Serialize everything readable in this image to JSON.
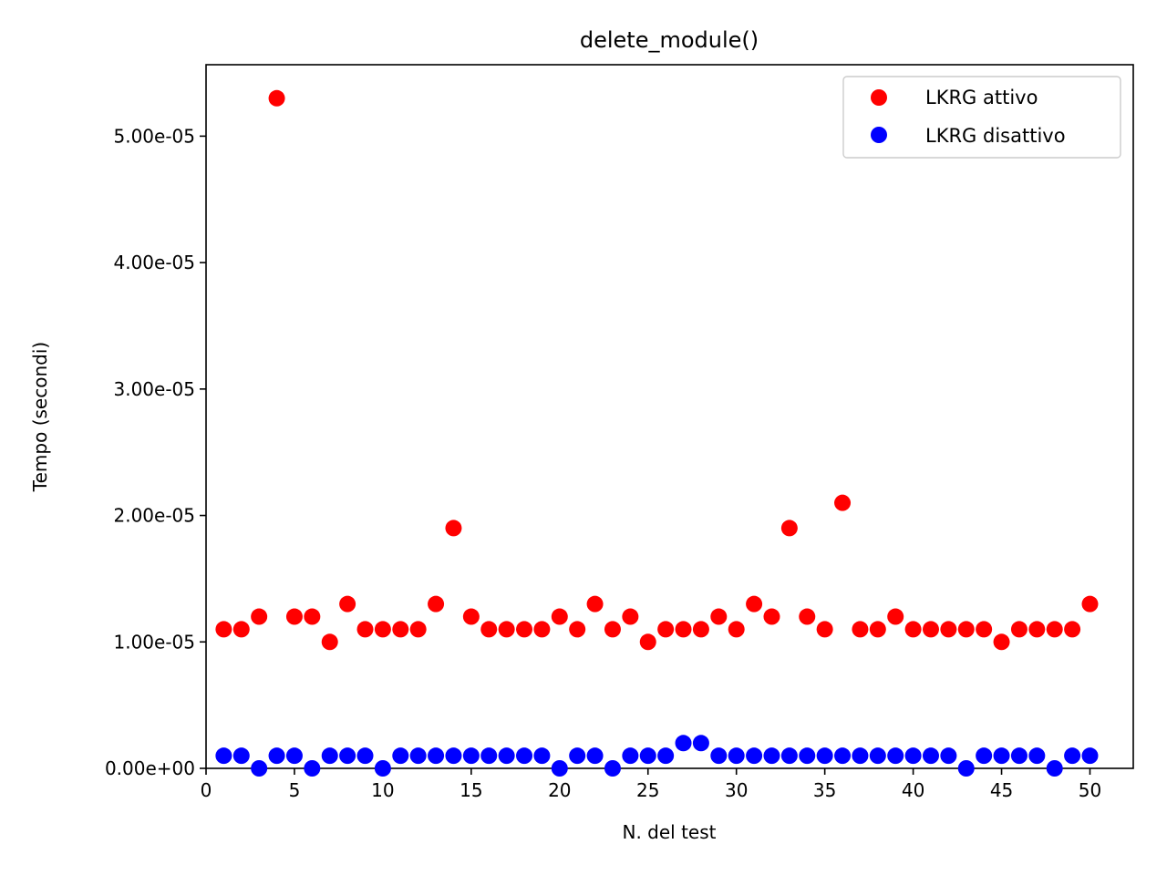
{
  "chart_data": {
    "type": "scatter",
    "title": "delete_module()",
    "xlabel": "N. del test",
    "ylabel": "Tempo (secondi)",
    "xlim": [
      0,
      52.45
    ],
    "ylim": [
      0,
      5.565e-05
    ],
    "xticks": [
      0,
      5,
      10,
      15,
      20,
      25,
      30,
      35,
      40,
      45,
      50
    ],
    "yticks": [
      0,
      1e-05,
      2e-05,
      3e-05,
      4e-05,
      5e-05
    ],
    "ytick_labels": [
      "0.00e+00",
      "1.00e-05",
      "2.00e-05",
      "3.00e-05",
      "4.00e-05",
      "5.00e-05"
    ],
    "grid": false,
    "legend_position": "top-right",
    "x": [
      1,
      2,
      3,
      4,
      5,
      6,
      7,
      8,
      9,
      10,
      11,
      12,
      13,
      14,
      15,
      16,
      17,
      18,
      19,
      20,
      21,
      22,
      23,
      24,
      25,
      26,
      27,
      28,
      29,
      30,
      31,
      32,
      33,
      34,
      35,
      36,
      37,
      38,
      39,
      40,
      41,
      42,
      43,
      44,
      45,
      46,
      47,
      48,
      49,
      50
    ],
    "series": [
      {
        "name": "LKRG attivo",
        "color": "#ff0000",
        "values": [
          1.1e-05,
          1.1e-05,
          1.2e-05,
          5.3e-05,
          1.2e-05,
          1.2e-05,
          1e-05,
          1.3e-05,
          1.1e-05,
          1.1e-05,
          1.1e-05,
          1.1e-05,
          1.3e-05,
          1.9e-05,
          1.2e-05,
          1.1e-05,
          1.1e-05,
          1.1e-05,
          1.1e-05,
          1.2e-05,
          1.1e-05,
          1.3e-05,
          1.1e-05,
          1.2e-05,
          1e-05,
          1.1e-05,
          1.1e-05,
          1.1e-05,
          1.2e-05,
          1.1e-05,
          1.3e-05,
          1.2e-05,
          1.9e-05,
          1.2e-05,
          1.1e-05,
          2.1e-05,
          1.1e-05,
          1.1e-05,
          1.2e-05,
          1.1e-05,
          1.1e-05,
          1.1e-05,
          1.1e-05,
          1.1e-05,
          1e-05,
          1.1e-05,
          1.1e-05,
          1.1e-05,
          1.1e-05,
          1.3e-05
        ]
      },
      {
        "name": "LKRG disattivo",
        "color": "#0000ff",
        "values": [
          1e-06,
          1e-06,
          0,
          1e-06,
          1e-06,
          0,
          1e-06,
          1e-06,
          1e-06,
          0,
          1e-06,
          1e-06,
          1e-06,
          1e-06,
          1e-06,
          1e-06,
          1e-06,
          1e-06,
          1e-06,
          0,
          1e-06,
          1e-06,
          0,
          1e-06,
          1e-06,
          1e-06,
          2e-06,
          2e-06,
          1e-06,
          1e-06,
          1e-06,
          1e-06,
          1e-06,
          1e-06,
          1e-06,
          1e-06,
          1e-06,
          1e-06,
          1e-06,
          1e-06,
          1e-06,
          1e-06,
          0,
          1e-06,
          1e-06,
          1e-06,
          1e-06,
          0,
          1e-06,
          1e-06
        ]
      }
    ]
  }
}
